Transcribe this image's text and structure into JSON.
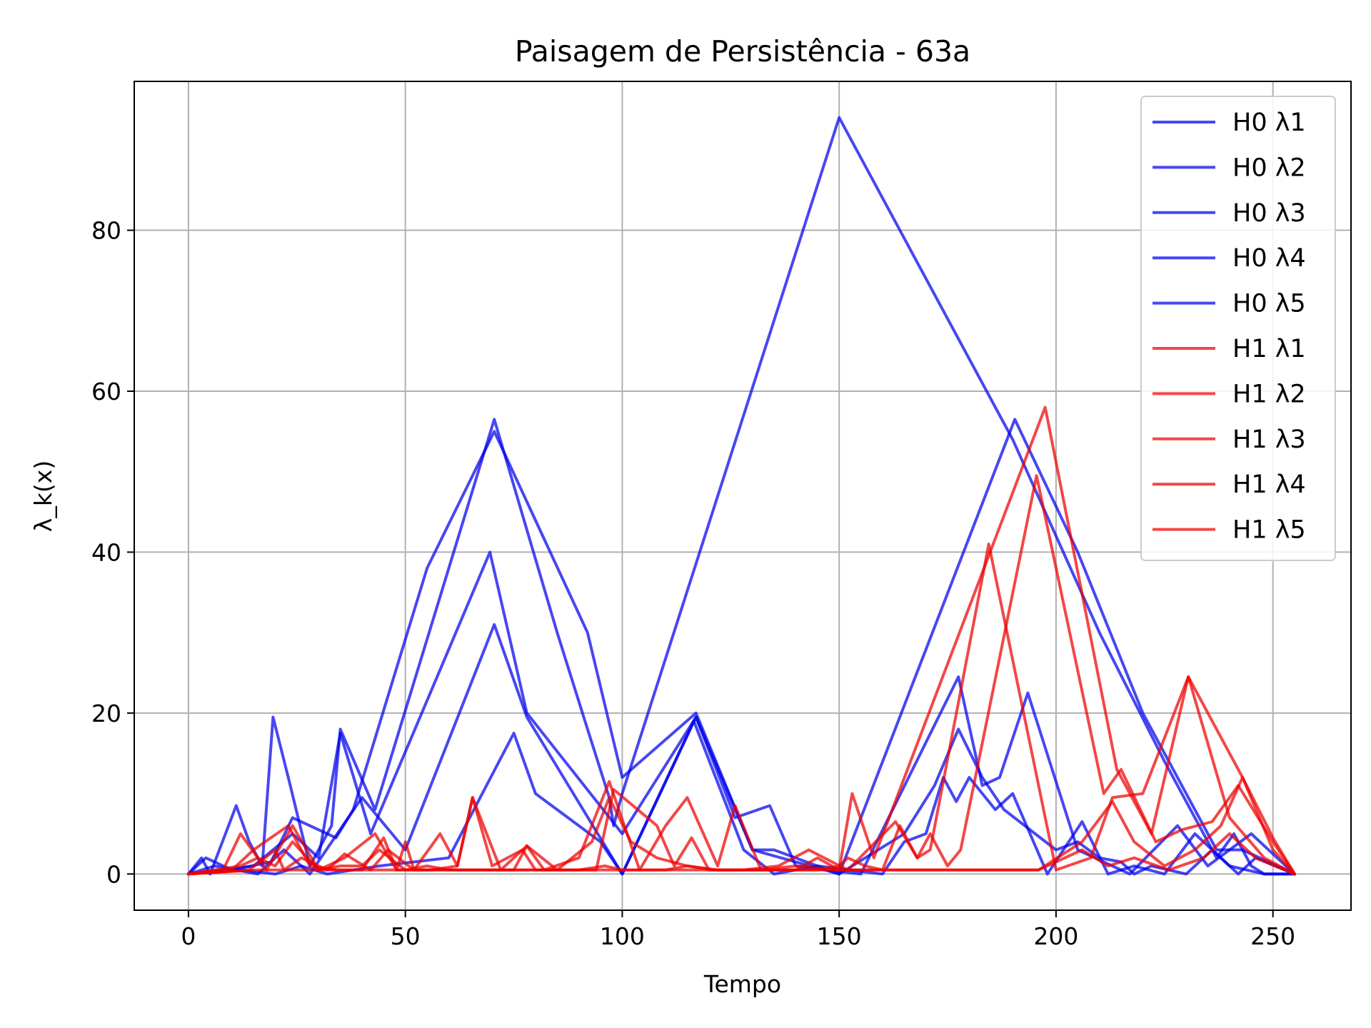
{
  "chart_data": {
    "type": "line",
    "title": "Paisagem de Persistência - 63a",
    "xlabel": "Tempo",
    "ylabel": "λ_k(x)",
    "xlim": [
      -12.5,
      268
    ],
    "ylim": [
      -4.5,
      98.5
    ],
    "xticks": [
      0,
      50,
      100,
      150,
      200,
      250
    ],
    "yticks": [
      0,
      20,
      40,
      60,
      80
    ],
    "grid": true,
    "legend_position": "top-right",
    "colors": {
      "H0": "#0000ee",
      "H1": "#ee0000"
    },
    "series": [
      {
        "name": "H0 λ1",
        "group": "H0",
        "x": [
          0,
          3,
          5,
          11,
          14,
          15,
          17,
          19.5,
          23,
          28,
          33,
          35,
          43,
          70.5,
          85,
          92,
          97,
          98,
          100,
          150,
          190,
          195,
          210,
          225,
          237,
          241,
          245,
          248,
          255
        ],
        "y": [
          0,
          2,
          0,
          8.5,
          4,
          3,
          1,
          19.5,
          12,
          1,
          6,
          18,
          8,
          56.5,
          30,
          18,
          9.5,
          6,
          10,
          94,
          54,
          48,
          30,
          14,
          2,
          5,
          1,
          0,
          0
        ]
      },
      {
        "name": "H0 λ2",
        "group": "H0",
        "x": [
          0,
          4,
          10,
          19,
          24,
          34,
          38,
          55,
          70.5,
          92,
          100,
          117,
          130,
          150,
          190.5,
          205,
          220,
          237,
          243,
          255
        ],
        "y": [
          0,
          2,
          0.5,
          1.5,
          7,
          4.5,
          8,
          38,
          55,
          30,
          12,
          20,
          3,
          0,
          56.5,
          40,
          20,
          3,
          3,
          0
        ],
        "unused": 0
      },
      {
        "name": "H0 λ3",
        "group": "H0",
        "x": [
          0,
          8,
          15,
          24,
          30,
          35,
          42,
          69.5,
          78,
          100,
          117,
          126,
          134,
          140,
          155,
          177.5,
          183,
          187,
          193.5,
          205,
          217,
          228,
          235,
          240,
          245,
          255
        ],
        "y": [
          0,
          0.5,
          1,
          5,
          2,
          17.5,
          5,
          40,
          20,
          5,
          19.5,
          7,
          8.5,
          1,
          0,
          24.5,
          11,
          12,
          22.5,
          3,
          0,
          6,
          1,
          3,
          5,
          0
        ]
      },
      {
        "name": "H0 λ4",
        "group": "H0",
        "x": [
          0,
          6,
          16,
          22,
          28,
          40,
          50,
          70.5,
          78,
          100,
          117,
          130,
          135,
          150,
          165,
          172,
          177.5,
          183,
          188,
          200,
          205,
          210,
          215,
          218,
          222,
          230,
          236,
          242,
          246,
          255
        ],
        "y": [
          0,
          1,
          0,
          3,
          0,
          9.5,
          3,
          31,
          19.5,
          0,
          19.5,
          3,
          3,
          0,
          5,
          11,
          18,
          12,
          8,
          3,
          4,
          2,
          1.5,
          0,
          1,
          0,
          3,
          0,
          2,
          0
        ]
      },
      {
        "name": "H0 λ5",
        "group": "H0",
        "x": [
          0,
          12,
          20,
          26,
          32,
          44,
          60,
          75,
          80,
          95,
          100,
          116.5,
          128,
          135,
          145,
          160,
          165,
          170,
          174,
          177,
          180,
          186,
          190,
          198,
          206,
          212,
          218,
          225,
          232,
          240,
          248,
          255
        ],
        "y": [
          0,
          0.5,
          0,
          1,
          0,
          1,
          2,
          17.5,
          10,
          4,
          0,
          19,
          3,
          0,
          1,
          0,
          4,
          5,
          12,
          9,
          12,
          8,
          10,
          0,
          6.5,
          0,
          1,
          0,
          5,
          1,
          0,
          0
        ]
      },
      {
        "name": "H1 λ1",
        "group": "H1",
        "x": [
          0,
          8,
          12,
          18,
          24,
          30,
          36,
          43,
          48,
          50,
          52,
          58,
          62,
          65.5,
          72,
          78,
          82,
          90,
          97,
          104,
          110,
          115,
          122,
          126,
          132,
          140,
          150,
          153,
          158,
          197.5,
          214,
          222,
          230.5,
          243,
          250,
          255
        ],
        "y": [
          0,
          0.5,
          5,
          0.5,
          6,
          0.5,
          2,
          5,
          0.5,
          4,
          0.5,
          5,
          1,
          9.5,
          0.5,
          3.5,
          0.5,
          2,
          11.5,
          0.5,
          6,
          9.5,
          1,
          8.5,
          0.5,
          1,
          0.5,
          10,
          2,
          58,
          13,
          5,
          24.5,
          12,
          4.5,
          0
        ]
      },
      {
        "name": "H1 λ2",
        "group": "H1",
        "x": [
          0,
          10,
          15,
          23,
          28,
          34,
          40,
          45,
          48,
          56,
          62,
          65.5,
          70,
          77,
          80,
          86,
          94,
          98,
          108,
          112,
          116,
          120,
          128,
          136,
          143,
          152,
          163,
          168,
          171,
          175,
          178,
          195.5,
          211,
          215,
          223,
          229,
          236,
          242,
          250,
          255
        ],
        "y": [
          0,
          0.5,
          3,
          6,
          1,
          0.5,
          0.5,
          4.5,
          0.5,
          0.5,
          1,
          9.5,
          1,
          3,
          0.5,
          0.5,
          0.5,
          10.5,
          6,
          1,
          4.5,
          0.5,
          0.5,
          1,
          3,
          0.5,
          6.5,
          2,
          5,
          1,
          3,
          49.5,
          10,
          13,
          4,
          5.5,
          6.5,
          11,
          4,
          0
        ]
      },
      {
        "name": "H1 λ3",
        "group": "H1",
        "x": [
          0,
          12,
          16,
          20,
          24,
          30,
          35,
          40,
          44,
          50,
          55,
          60,
          66,
          75,
          78,
          85,
          93,
          97,
          102,
          108,
          115,
          121,
          125,
          131,
          138,
          145,
          150,
          152,
          156,
          160,
          164,
          168,
          171,
          184.5,
          200,
          208,
          213,
          220,
          230.5,
          240,
          248,
          255
        ],
        "y": [
          0,
          1,
          2,
          1,
          4,
          0.5,
          1,
          1,
          3,
          0.5,
          1,
          0.5,
          0.5,
          0.5,
          3.5,
          0.5,
          4,
          9.5,
          4,
          2,
          1,
          0.5,
          0.5,
          0.5,
          0.5,
          0.5,
          1,
          2,
          1,
          0.5,
          6,
          2,
          3,
          41,
          0.5,
          2,
          9.5,
          10,
          24.5,
          7,
          2,
          0
        ]
      },
      {
        "name": "H1 λ4",
        "group": "H1",
        "x": [
          0,
          14,
          20,
          22,
          26,
          32,
          36,
          42,
          46,
          52,
          60,
          64,
          70,
          80,
          90,
          96,
          100,
          106,
          110,
          115,
          122,
          130,
          140,
          145,
          150,
          160,
          170,
          178,
          183,
          190,
          196,
          206,
          213,
          218,
          225,
          232,
          238,
          243,
          250,
          255
        ],
        "y": [
          0,
          0.5,
          3,
          0.5,
          2,
          0.5,
          2.5,
          0.5,
          3,
          0.5,
          0.5,
          0.5,
          0.5,
          0.5,
          0.5,
          1,
          0.5,
          0.5,
          0.5,
          1,
          0.5,
          0.5,
          0.5,
          2,
          0.5,
          0.5,
          0.5,
          0.5,
          0.5,
          0.5,
          0.5,
          4,
          9,
          4,
          1,
          3,
          6,
          12,
          3,
          0
        ]
      },
      {
        "name": "H1 λ5",
        "group": "H1",
        "x": [
          0,
          16,
          22,
          30,
          38,
          46,
          56,
          66,
          76,
          86,
          96,
          106,
          116,
          126,
          136,
          146,
          156,
          166,
          176,
          186,
          196,
          206,
          212,
          218,
          226,
          234,
          240,
          246,
          255
        ],
        "y": [
          0,
          0.5,
          0.5,
          0.5,
          0.5,
          0.5,
          0.5,
          0.5,
          0.5,
          0.5,
          0.5,
          0.5,
          0.5,
          0.5,
          0.5,
          0.5,
          0.5,
          0.5,
          0.5,
          0.5,
          0.5,
          3,
          1,
          2,
          0.5,
          2,
          5,
          2,
          0
        ]
      }
    ]
  }
}
